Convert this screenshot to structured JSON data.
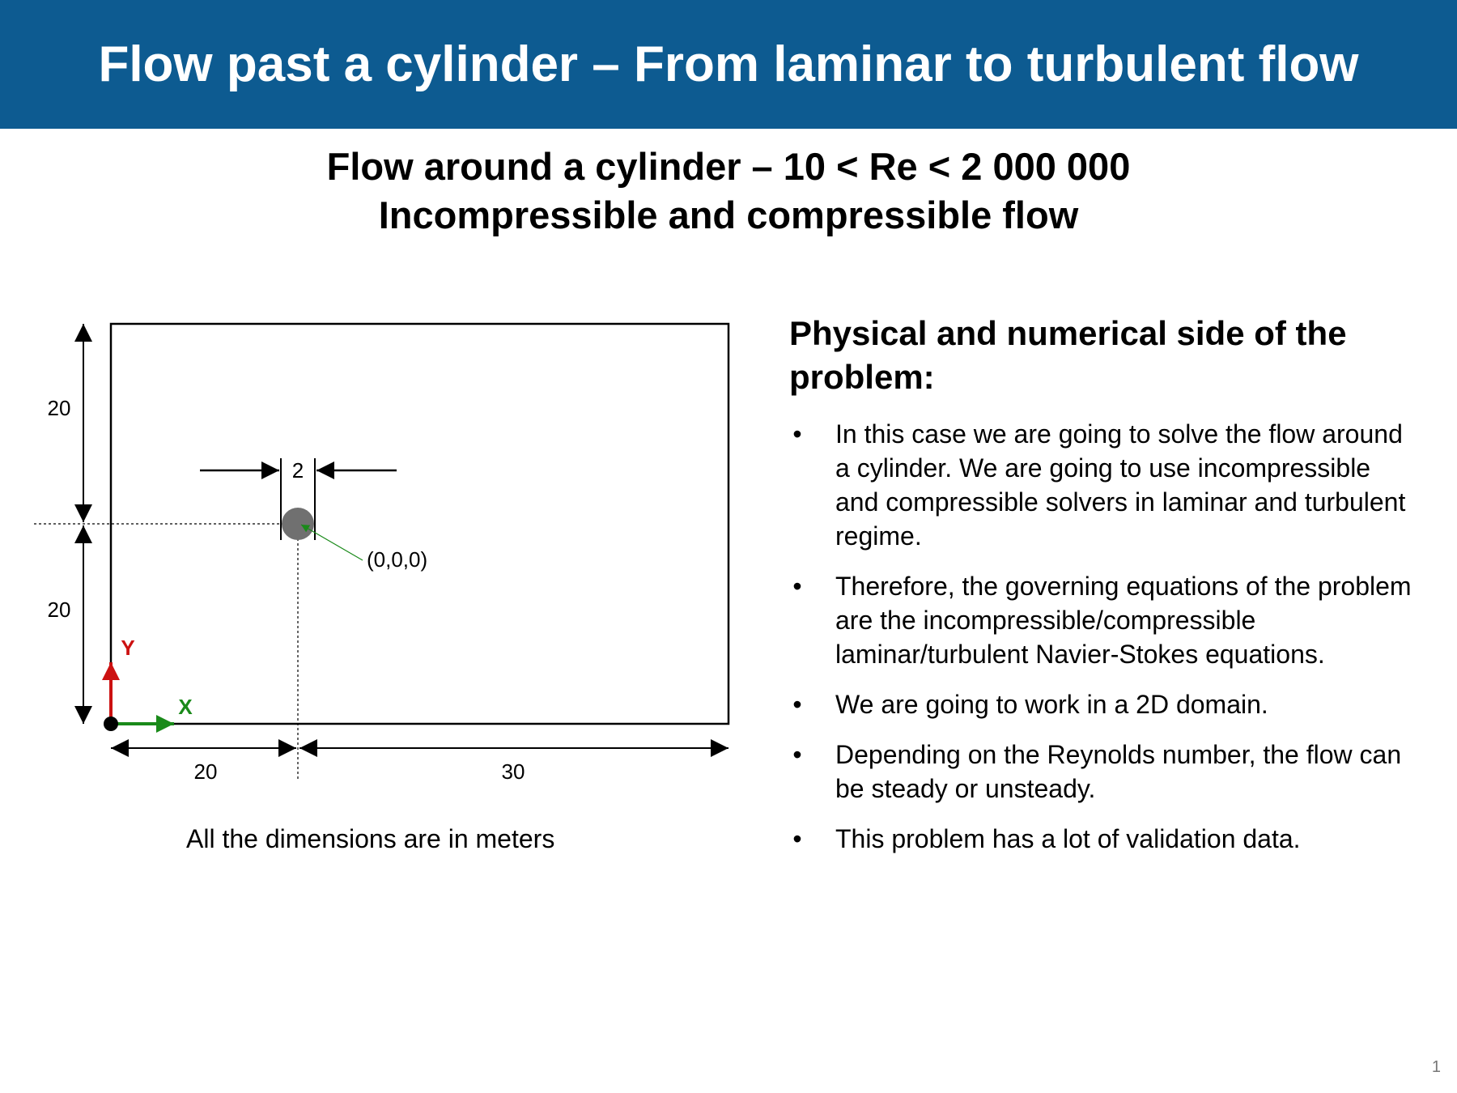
{
  "header": {
    "title": "Flow past a cylinder – From laminar to turbulent flow",
    "color": "#0d5b91"
  },
  "subtitle": {
    "line1": "Flow around a cylinder – 10 < Re < 2 000 000",
    "line2": "Incompressible and compressible flow"
  },
  "diagram": {
    "dim_upper_height": "20",
    "dim_lower_height": "20",
    "dim_cylinder_diameter": "2",
    "dim_left_width": "20",
    "dim_right_width": "30",
    "origin_label": "(0,0,0)",
    "axis_x_label": "X",
    "axis_y_label": "Y",
    "axis_x_color": "#1a8a1a",
    "axis_y_color": "#cc1111",
    "cylinder_color": "#707070",
    "caption": "All the dimensions are in meters"
  },
  "panel": {
    "heading": "Physical and numerical side of the problem:",
    "bullet_symbol": "•",
    "bullets": [
      "In this case we are going to solve the flow around a cylinder.  We are going to use incompressible and compressible solvers in laminar and turbulent regime.",
      "Therefore, the governing equations of the problem are the incompressible/compressible laminar/turbulent Navier-Stokes equations.",
      "We are going to work in a 2D domain.",
      "Depending on the Reynolds number, the flow can be steady or unsteady.",
      "This problem has a lot of validation data."
    ]
  },
  "page_number": "1"
}
